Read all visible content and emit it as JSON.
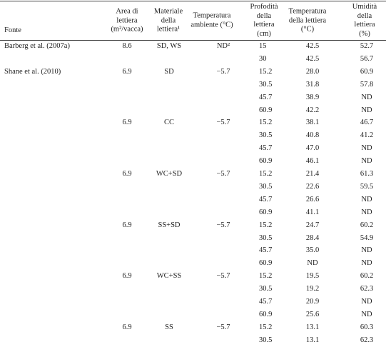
{
  "table": {
    "header": [
      "Fonte",
      "Area di\nlettiera\n(m²/vacca)",
      "Materiale\ndella\nlettiera¹",
      "Temperatura\nambiente (°C)",
      "Profodità\ndella\nlettiera\n(cm)",
      "Temperatura\ndella lettiera\n(°C)",
      "Umidità\ndella lettiera\n(%)"
    ],
    "rows": [
      [
        "Barberg et al. (2007a)",
        "8.6",
        "SD, WS",
        "ND²",
        "15",
        "42.5",
        "52.7"
      ],
      [
        null,
        null,
        null,
        null,
        "30",
        "42.5",
        "56.7"
      ],
      [
        "Shane et al. (2010)",
        "6.9",
        "SD",
        "−5.7",
        "15.2",
        "28.0",
        "60.9"
      ],
      [
        null,
        null,
        null,
        null,
        "30.5",
        "31.8",
        "57.8"
      ],
      [
        null,
        null,
        null,
        null,
        "45.7",
        "38.9",
        "ND"
      ],
      [
        null,
        null,
        null,
        null,
        "60.9",
        "42.2",
        "ND"
      ],
      [
        null,
        "6.9",
        "CC",
        "−5.7",
        "15.2",
        "38.1",
        "46.7"
      ],
      [
        null,
        null,
        null,
        null,
        "30.5",
        "40.8",
        "41.2"
      ],
      [
        null,
        null,
        null,
        null,
        "45.7",
        "47.0",
        "ND"
      ],
      [
        null,
        null,
        null,
        null,
        "60.9",
        "46.1",
        "ND"
      ],
      [
        null,
        "6.9",
        "WC+SD",
        "−5.7",
        "15.2",
        "21.4",
        "61.3"
      ],
      [
        null,
        null,
        null,
        null,
        "30.5",
        "22.6",
        "59.5"
      ],
      [
        null,
        null,
        null,
        null,
        "45.7",
        "26.6",
        "ND"
      ],
      [
        null,
        null,
        null,
        null,
        "60.9",
        "41.1",
        "ND"
      ],
      [
        null,
        "6.9",
        "SS+SD",
        "−5.7",
        "15.2",
        "24.7",
        "60.2"
      ],
      [
        null,
        null,
        null,
        null,
        "30.5",
        "28.4",
        "54.9"
      ],
      [
        null,
        null,
        null,
        null,
        "45.7",
        "35.0",
        "ND"
      ],
      [
        null,
        null,
        null,
        null,
        "60.9",
        "ND",
        "ND"
      ],
      [
        null,
        "6.9",
        "WC+SS",
        "−5.7",
        "15.2",
        "19.5",
        "60.2"
      ],
      [
        null,
        null,
        null,
        null,
        "30.5",
        "19.2",
        "62.3"
      ],
      [
        null,
        null,
        null,
        null,
        "45.7",
        "20.9",
        "ND"
      ],
      [
        null,
        null,
        null,
        null,
        "60.9",
        "25.6",
        "ND"
      ],
      [
        null,
        "6.9",
        "SS",
        "−5.7",
        "15.2",
        "13.1",
        "60.3"
      ],
      [
        null,
        null,
        null,
        null,
        "30.5",
        "13.1",
        "62.3"
      ]
    ]
  }
}
